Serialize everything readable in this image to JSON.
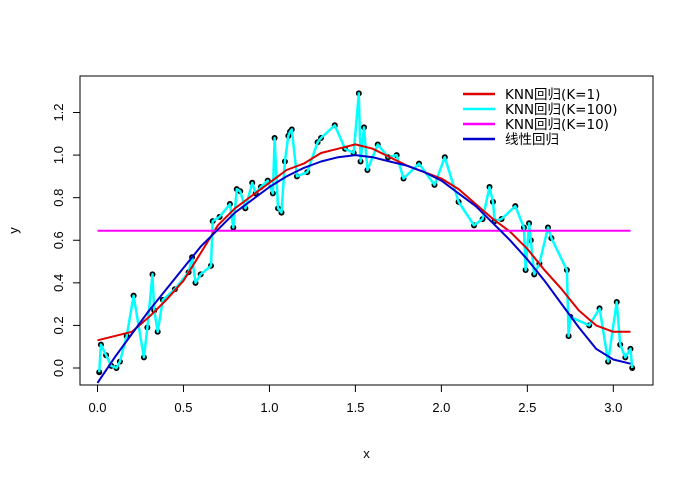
{
  "chart_data": {
    "type": "scatter",
    "title": "",
    "xlabel": "x",
    "ylabel": "y",
    "xlim": [
      -0.12,
      3.25
    ],
    "ylim": [
      -0.07,
      1.33
    ],
    "xticks": [
      0.0,
      0.5,
      1.0,
      1.5,
      2.0,
      2.5,
      3.0
    ],
    "xtick_labels": [
      "0.0",
      "0.5",
      "1.0",
      "1.5",
      "2.0",
      "2.5",
      "3.0"
    ],
    "yticks": [
      0.0,
      0.2,
      0.4,
      0.6,
      0.8,
      1.0,
      1.2
    ],
    "ytick_labels": [
      "0.0",
      "0.2",
      "0.4",
      "0.6",
      "0.8",
      "1.0",
      "1.2"
    ],
    "grid": false,
    "legend_position": "top-right",
    "points": {
      "x": [
        0.01,
        0.02,
        0.05,
        0.08,
        0.11,
        0.13,
        0.17,
        0.21,
        0.27,
        0.29,
        0.32,
        0.33,
        0.35,
        0.38,
        0.45,
        0.53,
        0.55,
        0.57,
        0.6,
        0.66,
        0.67,
        0.71,
        0.77,
        0.79,
        0.81,
        0.83,
        0.86,
        0.9,
        0.92,
        0.95,
        0.99,
        1.02,
        1.03,
        1.05,
        1.07,
        1.09,
        1.11,
        1.12,
        1.13,
        1.16,
        1.22,
        1.28,
        1.3,
        1.38,
        1.44,
        1.49,
        1.52,
        1.53,
        1.55,
        1.57,
        1.63,
        1.69,
        1.74,
        1.78,
        1.87,
        1.96,
        2.02,
        2.1,
        2.19,
        2.24,
        2.28,
        2.3,
        2.31,
        2.35,
        2.43,
        2.48,
        2.49,
        2.51,
        2.52,
        2.54,
        2.57,
        2.62,
        2.64,
        2.73,
        2.74,
        2.75,
        2.86,
        2.92,
        2.97,
        3.02,
        3.04,
        3.07,
        3.1,
        3.11
      ],
      "y": [
        -0.02,
        0.11,
        0.06,
        0.01,
        0.0,
        0.03,
        0.15,
        0.34,
        0.05,
        0.19,
        0.44,
        0.27,
        0.17,
        0.32,
        0.37,
        0.45,
        0.52,
        0.4,
        0.44,
        0.48,
        0.69,
        0.71,
        0.77,
        0.66,
        0.84,
        0.83,
        0.75,
        0.87,
        0.82,
        0.85,
        0.88,
        0.82,
        1.08,
        0.75,
        0.73,
        0.97,
        1.09,
        1.11,
        1.12,
        0.9,
        0.92,
        1.06,
        1.08,
        1.14,
        1.03,
        1.01,
        1.29,
        0.97,
        1.13,
        0.93,
        1.05,
        0.99,
        1.0,
        0.89,
        0.96,
        0.86,
        0.99,
        0.78,
        0.67,
        0.7,
        0.85,
        0.78,
        0.69,
        0.7,
        0.76,
        0.66,
        0.46,
        0.68,
        0.6,
        0.44,
        0.49,
        0.66,
        0.61,
        0.46,
        0.15,
        0.24,
        0.2,
        0.28,
        0.03,
        0.31,
        0.11,
        0.05,
        0.09,
        0.0
      ]
    },
    "series": [
      {
        "name": "KNN回归(K=1)",
        "color": "#dd0000",
        "x": [
          0.0,
          0.2,
          0.3,
          0.4,
          0.5,
          0.6,
          0.7,
          0.8,
          0.9,
          1.0,
          1.1,
          1.2,
          1.3,
          1.4,
          1.5,
          1.6,
          1.7,
          1.8,
          1.9,
          2.0,
          2.1,
          2.2,
          2.3,
          2.4,
          2.45,
          2.5,
          2.6,
          2.7,
          2.8,
          2.9,
          3.0,
          3.1
        ],
        "y": [
          0.13,
          0.17,
          0.24,
          0.32,
          0.41,
          0.54,
          0.67,
          0.75,
          0.81,
          0.87,
          0.93,
          0.96,
          1.01,
          1.03,
          1.05,
          1.03,
          0.99,
          0.95,
          0.92,
          0.89,
          0.84,
          0.77,
          0.7,
          0.64,
          0.6,
          0.56,
          0.46,
          0.37,
          0.27,
          0.2,
          0.17,
          0.17
        ]
      },
      {
        "name": "KNN回归(K=100)",
        "color": "#00ffff",
        "x": [
          0.01,
          0.02,
          0.05,
          0.08,
          0.11,
          0.13,
          0.17,
          0.21,
          0.27,
          0.29,
          0.32,
          0.33,
          0.35,
          0.38,
          0.45,
          0.53,
          0.55,
          0.57,
          0.6,
          0.66,
          0.67,
          0.71,
          0.77,
          0.79,
          0.81,
          0.83,
          0.86,
          0.9,
          0.92,
          0.95,
          0.99,
          1.02,
          1.03,
          1.05,
          1.07,
          1.09,
          1.11,
          1.12,
          1.13,
          1.16,
          1.22,
          1.28,
          1.3,
          1.38,
          1.44,
          1.49,
          1.52,
          1.53,
          1.55,
          1.57,
          1.63,
          1.69,
          1.74,
          1.78,
          1.87,
          1.96,
          2.02,
          2.1,
          2.19,
          2.24,
          2.28,
          2.3,
          2.31,
          2.35,
          2.43,
          2.48,
          2.49,
          2.51,
          2.52,
          2.54,
          2.57,
          2.62,
          2.64,
          2.73,
          2.74,
          2.75,
          2.86,
          2.92,
          2.97,
          3.02,
          3.04,
          3.07,
          3.1,
          3.11
        ],
        "y": [
          -0.02,
          0.11,
          0.06,
          0.01,
          0.0,
          0.03,
          0.15,
          0.34,
          0.05,
          0.19,
          0.44,
          0.27,
          0.17,
          0.32,
          0.37,
          0.45,
          0.52,
          0.4,
          0.44,
          0.48,
          0.69,
          0.71,
          0.77,
          0.66,
          0.84,
          0.83,
          0.75,
          0.87,
          0.82,
          0.85,
          0.88,
          0.82,
          1.08,
          0.75,
          0.73,
          0.97,
          1.09,
          1.11,
          1.12,
          0.9,
          0.92,
          1.06,
          1.08,
          1.14,
          1.03,
          1.01,
          1.29,
          0.97,
          1.13,
          0.93,
          1.05,
          0.99,
          1.0,
          0.89,
          0.96,
          0.86,
          0.99,
          0.78,
          0.67,
          0.7,
          0.85,
          0.78,
          0.69,
          0.7,
          0.76,
          0.66,
          0.46,
          0.68,
          0.6,
          0.44,
          0.49,
          0.66,
          0.61,
          0.46,
          0.15,
          0.24,
          0.2,
          0.28,
          0.03,
          0.31,
          0.11,
          0.05,
          0.09,
          0.0
        ]
      },
      {
        "name": "KNN回归(K=10)",
        "color": "#ff00ff",
        "x": [
          0.0,
          3.1
        ],
        "y": [
          0.645,
          0.645
        ]
      },
      {
        "name": "线性回归",
        "color": "#0000cc",
        "x": [
          0.0,
          0.1,
          0.2,
          0.3,
          0.4,
          0.5,
          0.6,
          0.7,
          0.8,
          0.9,
          1.0,
          1.1,
          1.2,
          1.3,
          1.4,
          1.5,
          1.6,
          1.7,
          1.8,
          1.9,
          2.0,
          2.1,
          2.2,
          2.3,
          2.4,
          2.5,
          2.6,
          2.7,
          2.8,
          2.9,
          3.0,
          3.1
        ],
        "y": [
          -0.07,
          0.05,
          0.16,
          0.27,
          0.37,
          0.47,
          0.57,
          0.65,
          0.73,
          0.79,
          0.85,
          0.9,
          0.94,
          0.97,
          0.99,
          1.0,
          0.99,
          0.97,
          0.95,
          0.92,
          0.88,
          0.82,
          0.76,
          0.68,
          0.6,
          0.51,
          0.41,
          0.3,
          0.19,
          0.09,
          0.04,
          0.02
        ]
      }
    ]
  },
  "legend": {
    "items": [
      {
        "label": "KNN回归(K=1)",
        "color": "#dd0000"
      },
      {
        "label": "KNN回归(K=100)",
        "color": "#00ffff"
      },
      {
        "label": "KNN回归(K=10)",
        "color": "#ff00ff"
      },
      {
        "label": "线性回归",
        "color": "#0000cc"
      }
    ]
  }
}
